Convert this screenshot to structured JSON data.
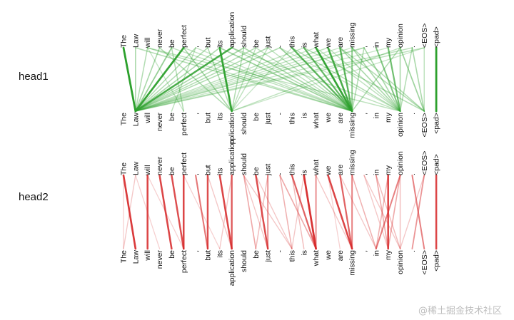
{
  "tokens": [
    "The",
    "Law",
    "will",
    "never",
    "be",
    "perfect",
    ",",
    "but",
    "its",
    "application",
    "should",
    "be",
    "just",
    "-",
    "this",
    "is",
    "what",
    "we",
    "are",
    "missing",
    ",",
    "in",
    "my",
    "opinion",
    ".",
    "<EOS>",
    "<pad>"
  ],
  "bottom_label_overrides": {
    "9": "pplication"
  },
  "heads": [
    {
      "name": "head1",
      "color": "#2ca02c",
      "links": [
        [
          0,
          1,
          1.0
        ],
        [
          1,
          1,
          0.35
        ],
        [
          2,
          1,
          0.3
        ],
        [
          3,
          1,
          0.35
        ],
        [
          4,
          1,
          0.45
        ],
        [
          5,
          1,
          0.95
        ],
        [
          6,
          1,
          0.3
        ],
        [
          7,
          1,
          0.3
        ],
        [
          8,
          1,
          0.35
        ],
        [
          9,
          1,
          0.85
        ],
        [
          10,
          1,
          0.35
        ],
        [
          3,
          9,
          0.3
        ],
        [
          5,
          9,
          0.35
        ],
        [
          7,
          9,
          0.3
        ],
        [
          8,
          9,
          0.95
        ],
        [
          10,
          9,
          0.3
        ],
        [
          1,
          19,
          0.3
        ],
        [
          2,
          19,
          0.25
        ],
        [
          8,
          19,
          0.4
        ],
        [
          10,
          19,
          0.35
        ],
        [
          12,
          19,
          0.25
        ],
        [
          13,
          19,
          0.45
        ],
        [
          14,
          19,
          0.75
        ],
        [
          15,
          19,
          0.7
        ],
        [
          16,
          19,
          0.95
        ],
        [
          17,
          19,
          0.85
        ],
        [
          18,
          19,
          0.75
        ],
        [
          19,
          19,
          0.5
        ],
        [
          20,
          19,
          0.3
        ],
        [
          23,
          19,
          0.3
        ],
        [
          14,
          23,
          0.3
        ],
        [
          18,
          23,
          0.35
        ],
        [
          19,
          23,
          0.35
        ],
        [
          20,
          23,
          0.35
        ],
        [
          21,
          23,
          0.55
        ],
        [
          22,
          23,
          0.65
        ],
        [
          23,
          23,
          0.35
        ],
        [
          24,
          23,
          0.3
        ],
        [
          15,
          25,
          0.3
        ],
        [
          18,
          25,
          0.3
        ],
        [
          19,
          25,
          0.3
        ],
        [
          23,
          25,
          0.4
        ],
        [
          24,
          25,
          0.35
        ],
        [
          25,
          25,
          0.25
        ],
        [
          26,
          26,
          1.0
        ],
        [
          2,
          5,
          0.2
        ],
        [
          4,
          5,
          0.3
        ],
        [
          6,
          4,
          0.25
        ],
        [
          11,
          1,
          0.3
        ],
        [
          11,
          9,
          0.25
        ],
        [
          12,
          1,
          0.3
        ],
        [
          13,
          1,
          0.3
        ],
        [
          15,
          1,
          0.25
        ],
        [
          17,
          1,
          0.25
        ],
        [
          20,
          1,
          0.35
        ],
        [
          24,
          1,
          0.25
        ],
        [
          25,
          1,
          0.25
        ],
        [
          4,
          19,
          0.25
        ],
        [
          5,
          19,
          0.25
        ],
        [
          9,
          19,
          0.3
        ],
        [
          16,
          1,
          0.2
        ],
        [
          18,
          1,
          0.2
        ],
        [
          19,
          1,
          0.2
        ],
        [
          22,
          1,
          0.2
        ],
        [
          14,
          9,
          0.2
        ],
        [
          12,
          9,
          0.25
        ],
        [
          23,
          9,
          0.25
        ],
        [
          25,
          9,
          0.2
        ],
        [
          16,
          23,
          0.25
        ],
        [
          17,
          23,
          0.25
        ],
        [
          13,
          23,
          0.2
        ],
        [
          2,
          23,
          0.25
        ],
        [
          9,
          23,
          0.25
        ],
        [
          11,
          19,
          0.25
        ],
        [
          6,
          19,
          0.2
        ]
      ]
    },
    {
      "name": "head2",
      "color": "#d62728",
      "links": [
        [
          0,
          1,
          0.9
        ],
        [
          1,
          0,
          0.2
        ],
        [
          2,
          2,
          0.85
        ],
        [
          3,
          4,
          0.85
        ],
        [
          4,
          5,
          0.8
        ],
        [
          5,
          5,
          0.85
        ],
        [
          6,
          7,
          0.6
        ],
        [
          7,
          7,
          0.8
        ],
        [
          8,
          9,
          0.85
        ],
        [
          9,
          9,
          0.75
        ],
        [
          10,
          11,
          0.35
        ],
        [
          11,
          12,
          0.8
        ],
        [
          12,
          12,
          0.5
        ],
        [
          13,
          14,
          0.3
        ],
        [
          13,
          16,
          0.35
        ],
        [
          14,
          16,
          0.7
        ],
        [
          15,
          16,
          0.95
        ],
        [
          16,
          16,
          0.5
        ],
        [
          14,
          15,
          0.25
        ],
        [
          17,
          19,
          0.85
        ],
        [
          18,
          19,
          0.7
        ],
        [
          19,
          19,
          0.55
        ],
        [
          21,
          22,
          0.35
        ],
        [
          22,
          22,
          0.85
        ],
        [
          23,
          22,
          0.35
        ],
        [
          22,
          21,
          0.3
        ],
        [
          23,
          21,
          0.55
        ],
        [
          21,
          23,
          0.25
        ],
        [
          20,
          23,
          0.2
        ],
        [
          24,
          25,
          0.55
        ],
        [
          25,
          24,
          0.45
        ],
        [
          26,
          26,
          0.85
        ],
        [
          10,
          12,
          0.2
        ],
        [
          12,
          11,
          0.25
        ],
        [
          9,
          8,
          0.2
        ],
        [
          11,
          14,
          0.2
        ],
        [
          10,
          14,
          0.2
        ],
        [
          19,
          21,
          0.3
        ],
        [
          18,
          21,
          0.2
        ],
        [
          20,
          22,
          0.2
        ],
        [
          5,
          8,
          0.15
        ],
        [
          1,
          3,
          0.15
        ],
        [
          2,
          5,
          0.15
        ],
        [
          16,
          19,
          0.2
        ],
        [
          23,
          23,
          0.25
        ],
        [
          0,
          0,
          0.15
        ],
        [
          15,
          14,
          0.2
        ],
        [
          17,
          18,
          0.15
        ],
        [
          7,
          9,
          0.2
        ],
        [
          25,
          23,
          0.2
        ]
      ]
    }
  ],
  "watermark": "@稀土掘金技术社区"
}
